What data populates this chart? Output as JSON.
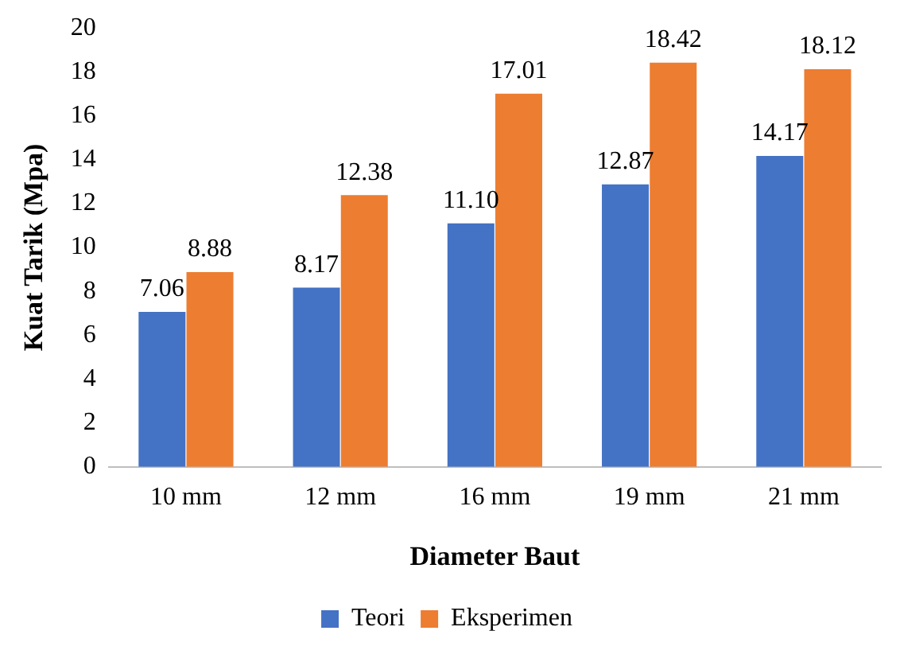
{
  "chart_data": {
    "type": "bar",
    "xlabel": "Diameter Baut",
    "ylabel": "Kuat Tarik (Mpa)",
    "categories": [
      "10 mm",
      "12 mm",
      "16 mm",
      "19 mm",
      "21 mm"
    ],
    "series": [
      {
        "name": "Teori",
        "color": "#4472c4",
        "values": [
          7.06,
          8.17,
          11.1,
          12.87,
          14.17
        ],
        "value_labels": [
          "7.06",
          "8.17",
          "11.10",
          "12.87",
          "14.17"
        ]
      },
      {
        "name": "Eksperimen",
        "color": "#ed7d31",
        "values": [
          8.88,
          12.38,
          17.01,
          18.42,
          18.12
        ],
        "value_labels": [
          "8.88",
          "12.38",
          "17.01",
          "18.42",
          "18.12"
        ]
      }
    ],
    "ylim": [
      0,
      20
    ],
    "yticks": [
      0,
      2,
      4,
      6,
      8,
      10,
      12,
      14,
      16,
      18,
      20
    ],
    "grid": false,
    "legend": "bottom"
  }
}
